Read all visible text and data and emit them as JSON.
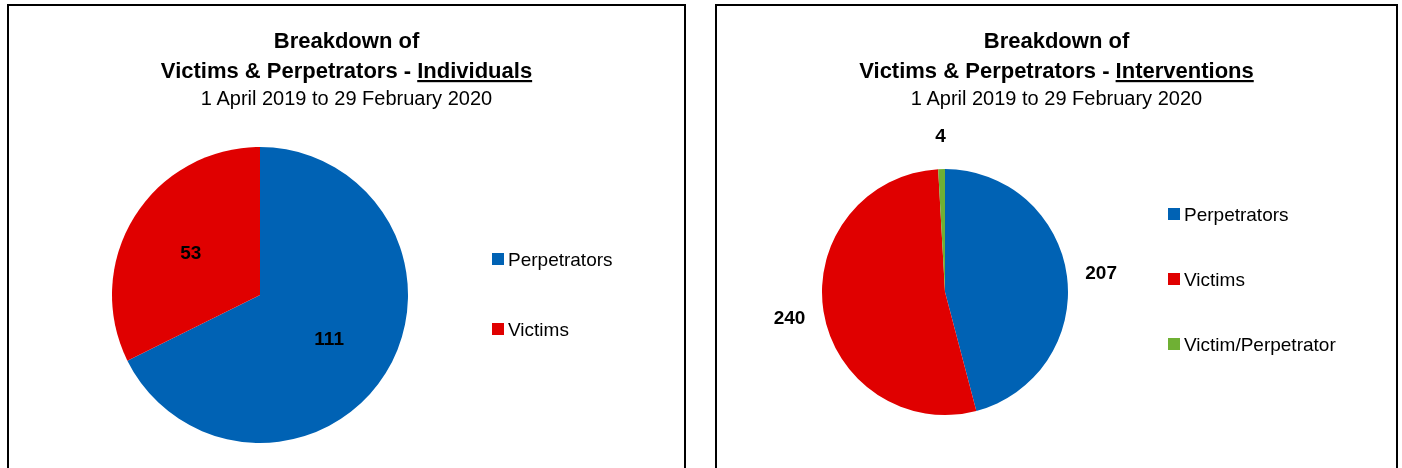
{
  "chart_data": [
    {
      "type": "pie",
      "title": "Breakdown of\nVictims & Perpetrators - Individuals",
      "subtitle": "1 April 2019 to 29 February 2020",
      "categories": [
        "Perpetrators",
        "Victims"
      ],
      "values": [
        111,
        53
      ],
      "colors": [
        "#0062b4",
        "#e00000"
      ],
      "data_labels": true,
      "legend": "right"
    },
    {
      "type": "pie",
      "title": "Breakdown of\nVictims & Perpetrators - Interventions",
      "subtitle": "1 April 2019 to 29 February 2020",
      "categories": [
        "Perpetrators",
        "Victims",
        "Victim/Perpetrator"
      ],
      "values": [
        207,
        240,
        4
      ],
      "colors": [
        "#0062b4",
        "#e00000",
        "#6fb034"
      ],
      "data_labels": true,
      "legend": "right"
    }
  ]
}
